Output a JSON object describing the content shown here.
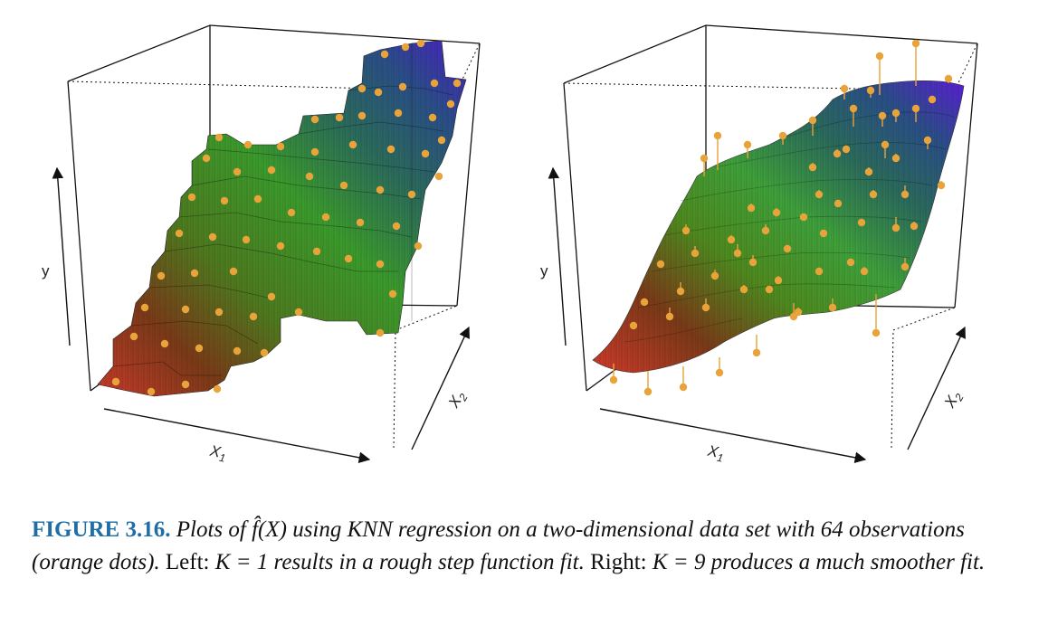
{
  "chart_data": [
    {
      "type": "surface3d",
      "panel": "left",
      "fit": "rough step function",
      "xlabel": "X1",
      "ylabel": "y",
      "zlabel": "X2",
      "grid": false,
      "surface_colors": [
        "#c93a2a",
        "#7a3a18",
        "#4e8a1f",
        "#3b9a2c",
        "#2b6a5c",
        "#2a4f86",
        "#4a1fc4"
      ],
      "point_color": "#e8a33a",
      "n_observations": 64
    },
    {
      "type": "surface3d",
      "panel": "right",
      "fit": "smooth surface",
      "xlabel": "X1",
      "ylabel": "y",
      "zlabel": "X2",
      "grid": false,
      "surface_colors": [
        "#c93a2a",
        "#7a3a18",
        "#4e8a1f",
        "#3b9a2c",
        "#2b6a5c",
        "#2a4f86",
        "#4a1fc4"
      ],
      "point_color": "#e8a33a",
      "n_observations": 64
    }
  ],
  "caption": {
    "label": "FIGURE 3.16.",
    "part1": "Plots of",
    "fhat": "f̂(X)",
    "part2": "using KNN regression on a two-dimensional data set with 64 observations (orange dots).",
    "left_word": "Left:",
    "k1": "K = 1",
    "part3": "results in a rough step function fit.",
    "right_word": "Right:",
    "k9": "K = 9",
    "part4": "produces a much smoother fit."
  },
  "axes": {
    "y": "y",
    "x1": "X",
    "x1_sub": "1",
    "x2": "X",
    "x2_sub": "2"
  }
}
